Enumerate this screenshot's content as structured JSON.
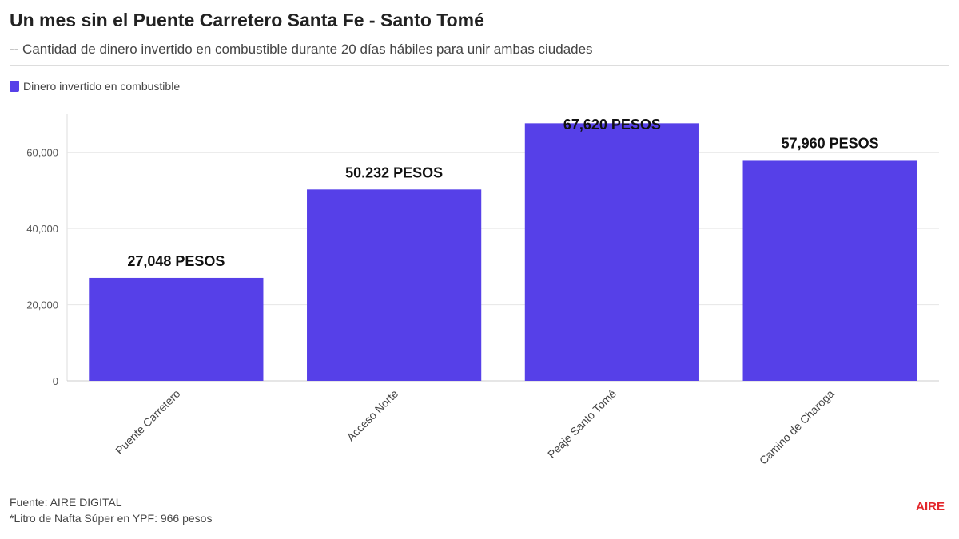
{
  "header": {
    "title": "Un mes sin el Puente Carretero Santa Fe - Santo Tomé",
    "subtitle": "-- Cantidad de dinero invertido en combustible durante 20 días hábiles para unir ambas ciudades"
  },
  "legend": {
    "label": "Dinero invertido en combustible"
  },
  "colors": {
    "bar": "#5640e8",
    "brand": "#e3262b"
  },
  "chart_data": {
    "type": "bar",
    "categories": [
      "Puente Carretero",
      "Acceso Norte",
      "Peaje Santo Tomé",
      "Camino de Charoga"
    ],
    "series": [
      {
        "name": "Dinero invertido en combustible",
        "values": [
          27048,
          50232,
          67620,
          57960
        ]
      }
    ],
    "data_labels": [
      "27,048 PESOS",
      "50.232 PESOS",
      "67,620 PESOS",
      "57,960 PESOS"
    ],
    "ylim": [
      0,
      70000
    ],
    "yticks": [
      0,
      20000,
      40000,
      60000
    ],
    "ytick_labels": [
      "0",
      "20,000",
      "40,000",
      "60,000"
    ],
    "grid": true,
    "legend_position": "top-left"
  },
  "footer": {
    "source": "Fuente: AIRE DIGITAL",
    "note": "*Litro de Nafta Súper en YPF: 966 pesos"
  },
  "brand": {
    "logo_text": "AIRE"
  }
}
